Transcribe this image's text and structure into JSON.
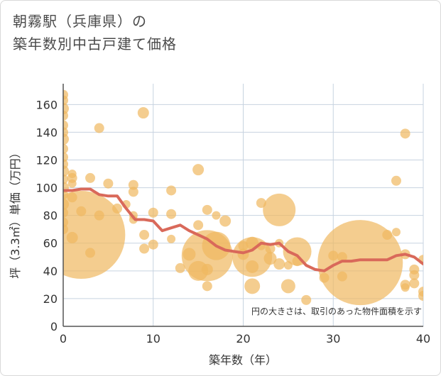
{
  "title_line1": "朝霧駅（兵庫県）の",
  "title_line2": "築年数別中古戸建て価格",
  "chart_data": {
    "type": "scatter",
    "xlabel": "築年数（年）",
    "ylabel": "坪（3.3㎡）単価（万円）",
    "xlim": [
      0,
      40
    ],
    "ylim": [
      0,
      175
    ],
    "xticks": [
      0,
      10,
      20,
      30,
      40
    ],
    "yticks": [
      0,
      20,
      40,
      60,
      80,
      100,
      120,
      140,
      160
    ],
    "grid": true,
    "note": "円の大きさは、取引のあった物件面積を示す",
    "bubble_color": "#f0b860",
    "line_color": "#d9695a",
    "points": [
      {
        "x": 0,
        "y": 167,
        "s": 7
      },
      {
        "x": 0,
        "y": 163,
        "s": 7
      },
      {
        "x": 0,
        "y": 157,
        "s": 8
      },
      {
        "x": 0,
        "y": 152,
        "s": 7
      },
      {
        "x": 0,
        "y": 145,
        "s": 7
      },
      {
        "x": 0,
        "y": 140,
        "s": 7
      },
      {
        "x": 0,
        "y": 135,
        "s": 8
      },
      {
        "x": 0,
        "y": 128,
        "s": 7
      },
      {
        "x": 0,
        "y": 122,
        "s": 7
      },
      {
        "x": 0,
        "y": 117,
        "s": 7
      },
      {
        "x": 0,
        "y": 112,
        "s": 8
      },
      {
        "x": 0,
        "y": 106,
        "s": 7
      },
      {
        "x": 0,
        "y": 100,
        "s": 8
      },
      {
        "x": 0,
        "y": 95,
        "s": 7
      },
      {
        "x": 0,
        "y": 88,
        "s": 8
      },
      {
        "x": 0,
        "y": 82,
        "s": 7
      },
      {
        "x": 0,
        "y": 75,
        "s": 7
      },
      {
        "x": 0,
        "y": 70,
        "s": 7
      },
      {
        "x": 1,
        "y": 110,
        "s": 6
      },
      {
        "x": 1,
        "y": 107,
        "s": 7
      },
      {
        "x": 1,
        "y": 103,
        "s": 6
      },
      {
        "x": 1,
        "y": 93,
        "s": 7
      },
      {
        "x": 1,
        "y": 64,
        "s": 8
      },
      {
        "x": 2,
        "y": 83,
        "s": 7
      },
      {
        "x": 2,
        "y": 66,
        "s": 62
      },
      {
        "x": 3,
        "y": 107,
        "s": 7
      },
      {
        "x": 3,
        "y": 53,
        "s": 7
      },
      {
        "x": 4,
        "y": 143,
        "s": 7
      },
      {
        "x": 4,
        "y": 80,
        "s": 7
      },
      {
        "x": 5,
        "y": 103,
        "s": 7
      },
      {
        "x": 6,
        "y": 85,
        "s": 7
      },
      {
        "x": 7,
        "y": 88,
        "s": 6
      },
      {
        "x": 7.8,
        "y": 102,
        "s": 7
      },
      {
        "x": 7.8,
        "y": 97,
        "s": 7
      },
      {
        "x": 7.8,
        "y": 80,
        "s": 6
      },
      {
        "x": 7.8,
        "y": 77,
        "s": 6
      },
      {
        "x": 8.9,
        "y": 154,
        "s": 8
      },
      {
        "x": 9,
        "y": 66,
        "s": 7
      },
      {
        "x": 9,
        "y": 56,
        "s": 7
      },
      {
        "x": 10,
        "y": 82,
        "s": 7
      },
      {
        "x": 10,
        "y": 59,
        "s": 7
      },
      {
        "x": 12,
        "y": 98,
        "s": 7
      },
      {
        "x": 12,
        "y": 81,
        "s": 7
      },
      {
        "x": 12,
        "y": 63,
        "s": 6
      },
      {
        "x": 13,
        "y": 42,
        "s": 7
      },
      {
        "x": 14,
        "y": 52,
        "s": 9
      },
      {
        "x": 15,
        "y": 113,
        "s": 8
      },
      {
        "x": 15,
        "y": 73,
        "s": 7
      },
      {
        "x": 15,
        "y": 40,
        "s": 14
      },
      {
        "x": 16,
        "y": 84,
        "s": 7
      },
      {
        "x": 16,
        "y": 51,
        "s": 36
      },
      {
        "x": 16,
        "y": 41,
        "s": 8
      },
      {
        "x": 16,
        "y": 29,
        "s": 7
      },
      {
        "x": 17,
        "y": 80,
        "s": 6
      },
      {
        "x": 17,
        "y": 58,
        "s": 20
      },
      {
        "x": 18,
        "y": 76,
        "s": 8
      },
      {
        "x": 20,
        "y": 58,
        "s": 7
      },
      {
        "x": 20,
        "y": 52,
        "s": 8
      },
      {
        "x": 21,
        "y": 60,
        "s": 9
      },
      {
        "x": 21,
        "y": 50,
        "s": 28
      },
      {
        "x": 21,
        "y": 43,
        "s": 9
      },
      {
        "x": 21,
        "y": 29,
        "s": 11
      },
      {
        "x": 22,
        "y": 89,
        "s": 7
      },
      {
        "x": 22,
        "y": 58,
        "s": 6
      },
      {
        "x": 23,
        "y": 49,
        "s": 9
      },
      {
        "x": 23,
        "y": 56,
        "s": 7
      },
      {
        "x": 24,
        "y": 84,
        "s": 23
      },
      {
        "x": 24,
        "y": 60,
        "s": 6
      },
      {
        "x": 24,
        "y": 45,
        "s": 8
      },
      {
        "x": 25,
        "y": 29,
        "s": 10
      },
      {
        "x": 25,
        "y": 44,
        "s": 6
      },
      {
        "x": 26,
        "y": 54,
        "s": 20
      },
      {
        "x": 26,
        "y": 47,
        "s": 7
      },
      {
        "x": 27,
        "y": 19,
        "s": 7
      },
      {
        "x": 29,
        "y": 35,
        "s": 7
      },
      {
        "x": 30,
        "y": 51,
        "s": 7
      },
      {
        "x": 31,
        "y": 36,
        "s": 7
      },
      {
        "x": 31,
        "y": 50,
        "s": 7
      },
      {
        "x": 33,
        "y": 46,
        "s": 60
      },
      {
        "x": 36,
        "y": 66,
        "s": 7
      },
      {
        "x": 37,
        "y": 68,
        "s": 6
      },
      {
        "x": 37,
        "y": 105,
        "s": 7
      },
      {
        "x": 38,
        "y": 139,
        "s": 7
      },
      {
        "x": 38,
        "y": 52,
        "s": 7
      },
      {
        "x": 38,
        "y": 30,
        "s": 7
      },
      {
        "x": 38,
        "y": 28,
        "s": 6
      },
      {
        "x": 39,
        "y": 41,
        "s": 7
      },
      {
        "x": 39,
        "y": 37,
        "s": 7
      },
      {
        "x": 39,
        "y": 31,
        "s": 7
      },
      {
        "x": 40,
        "y": 48,
        "s": 7
      },
      {
        "x": 40,
        "y": 25,
        "s": 7
      },
      {
        "x": 40,
        "y": 22,
        "s": 7
      }
    ],
    "trend": {
      "x": [
        0,
        1,
        2,
        3,
        4,
        5,
        6,
        7,
        8,
        9,
        10,
        11,
        12,
        13,
        14,
        15,
        16,
        17,
        18,
        19,
        20,
        21,
        22,
        23,
        24,
        25,
        26,
        27,
        28,
        29,
        30,
        31,
        32,
        33,
        34,
        35,
        36,
        37,
        38,
        39,
        40
      ],
      "y": [
        98,
        98,
        99,
        99,
        95,
        94,
        94,
        85,
        77,
        77,
        76,
        69,
        71,
        73,
        69,
        66,
        63,
        58,
        55,
        54,
        53,
        55,
        60,
        59,
        60,
        54,
        51,
        44,
        41,
        40,
        44,
        47,
        47,
        48,
        48,
        48,
        48,
        51,
        52,
        50,
        45
      ]
    }
  }
}
